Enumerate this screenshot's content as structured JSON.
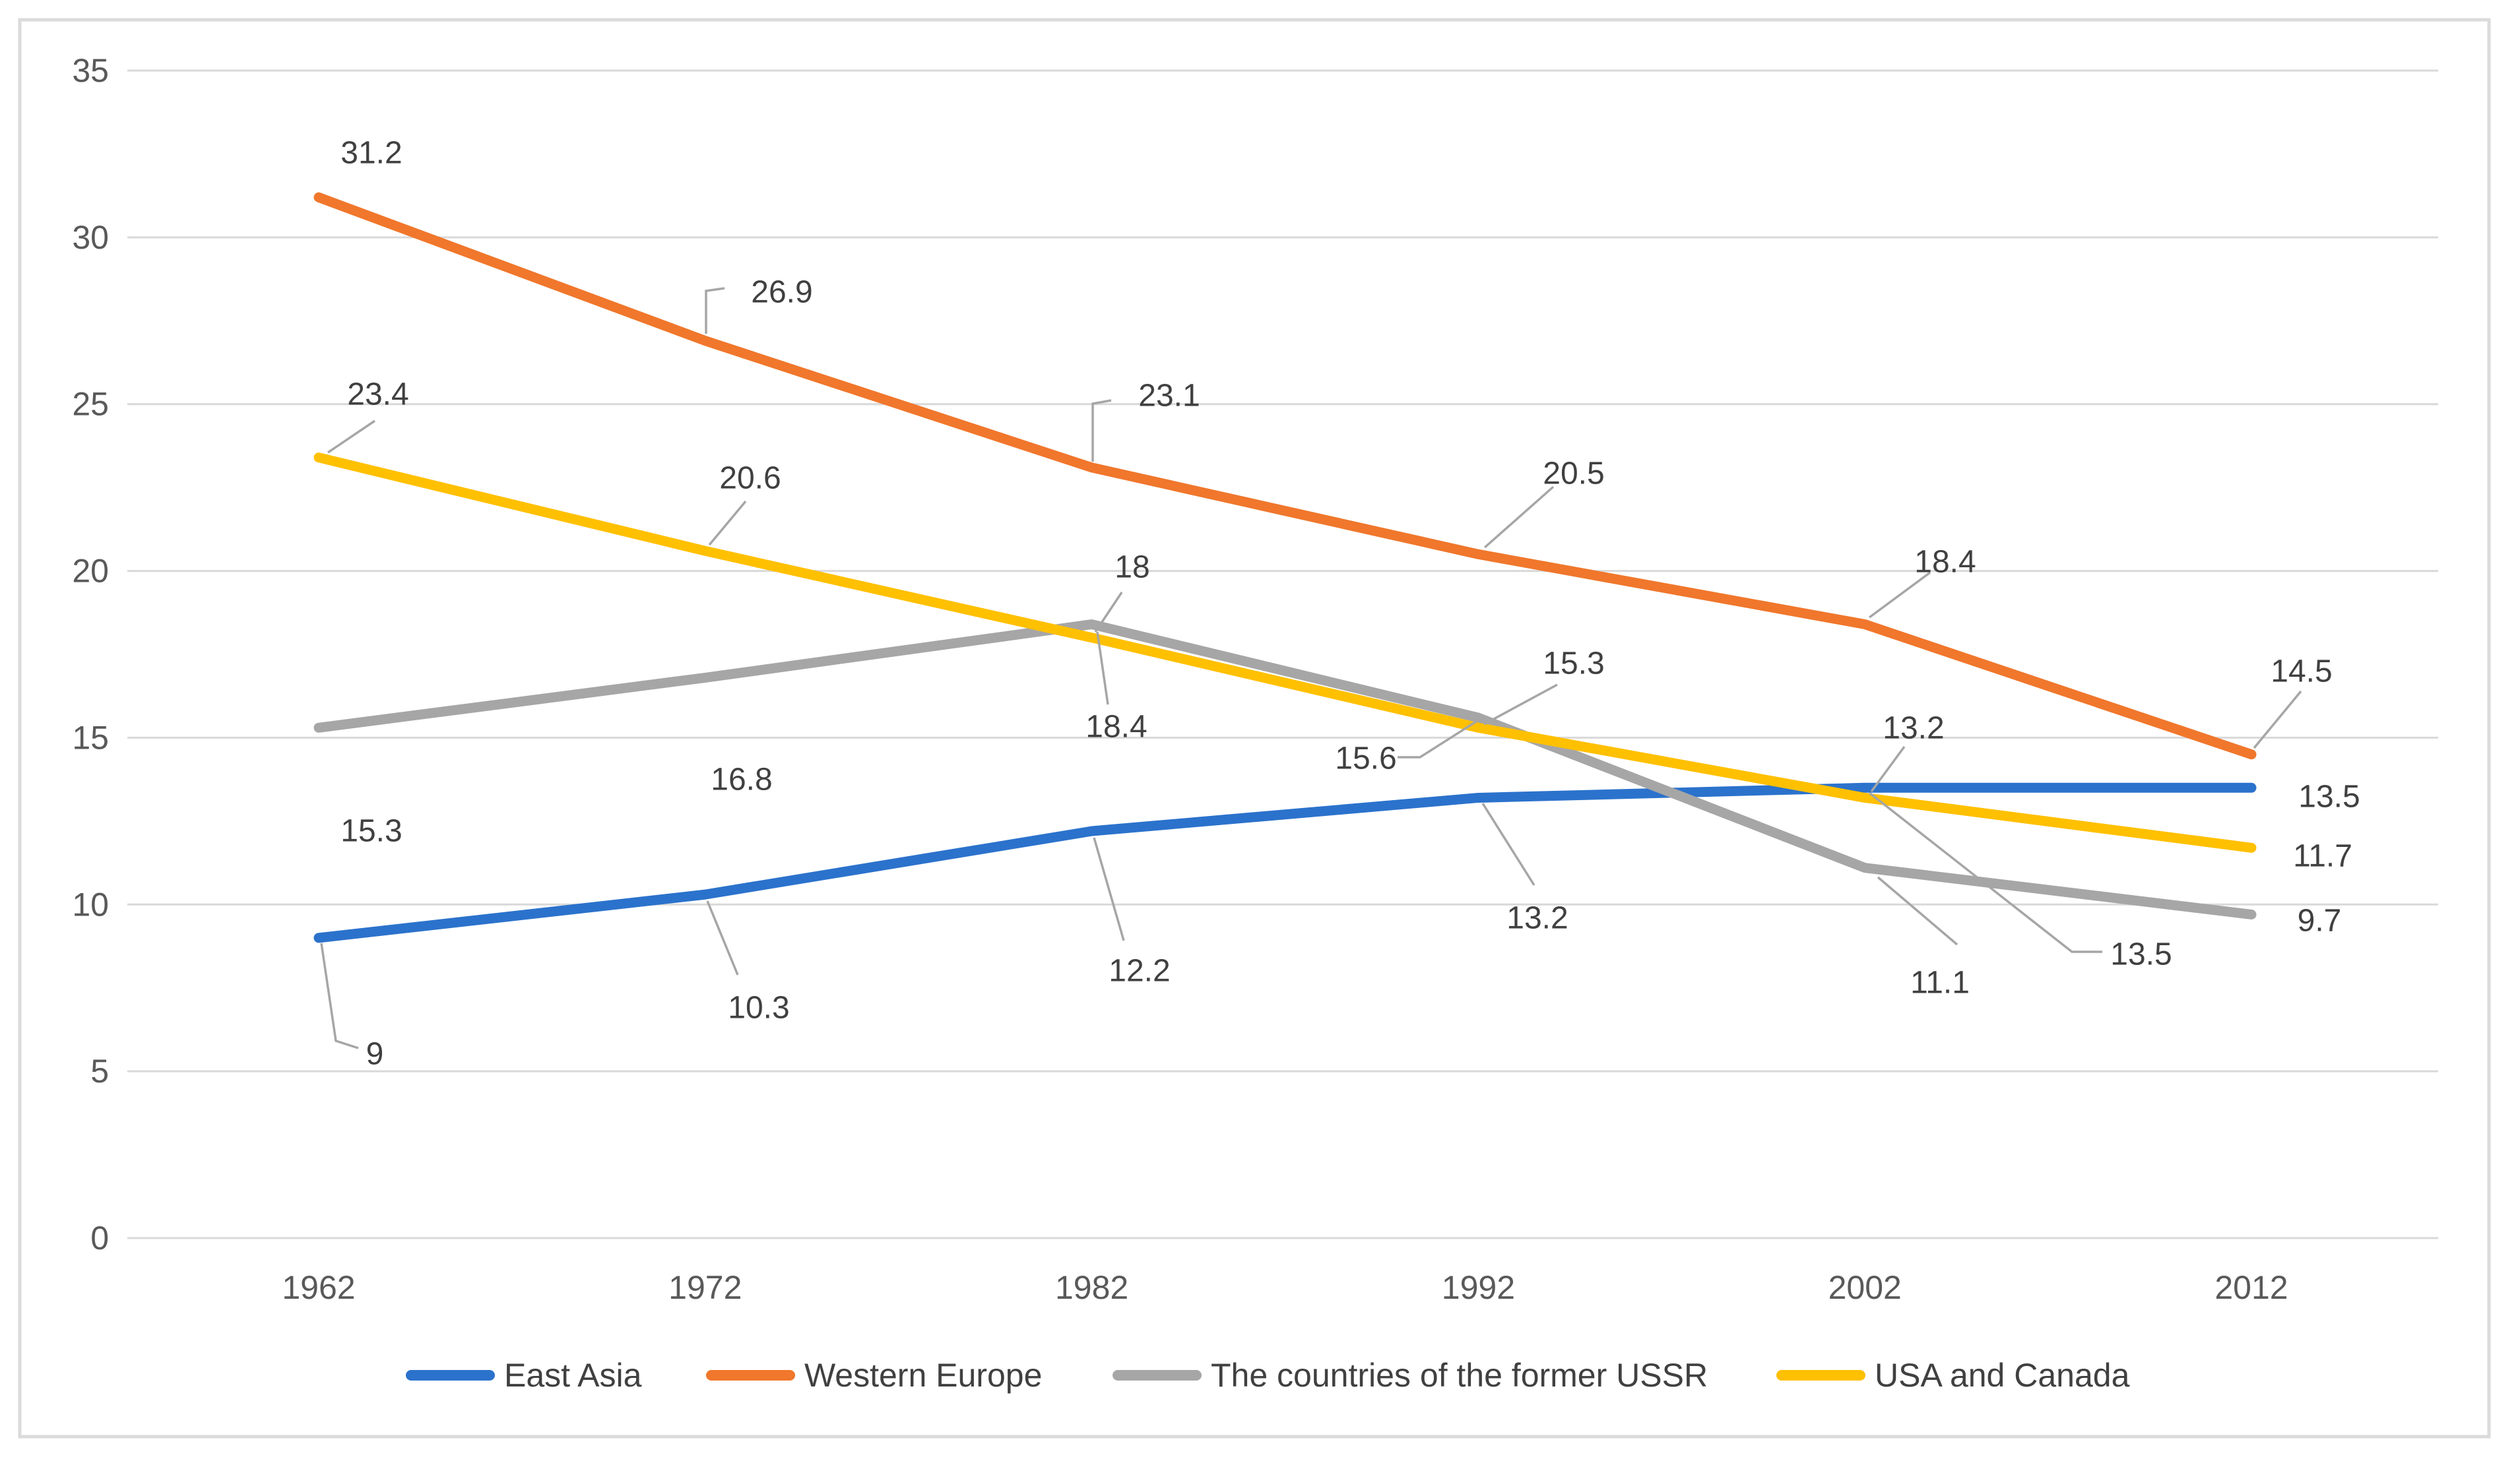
{
  "chart_data": {
    "type": "line",
    "title": "",
    "categories": [
      "1962",
      "1972",
      "1982",
      "1992",
      "2002",
      "2012"
    ],
    "series": [
      {
        "name": "East Asia",
        "color": "#2B72CC",
        "values": [
          9,
          10.3,
          12.2,
          13.2,
          13.5,
          13.5
        ]
      },
      {
        "name": "Western Europe",
        "color": "#F0772C",
        "values": [
          31.2,
          26.9,
          23.1,
          20.5,
          18.4,
          14.5
        ]
      },
      {
        "name": "The countries of the former USSR",
        "color": "#A6A6A6",
        "values": [
          15.3,
          16.8,
          18.4,
          15.6,
          11.1,
          9.7
        ]
      },
      {
        "name": "USA and Canada",
        "color": "#FFC000",
        "values": [
          23.4,
          20.6,
          18,
          15.3,
          13.2,
          11.7
        ]
      }
    ],
    "y_axis": {
      "min": 0,
      "max": 35,
      "step": 5,
      "tick_labels": [
        "0",
        "5",
        "10",
        "15",
        "20",
        "25",
        "30",
        "35"
      ]
    },
    "x_axis": {
      "tick_labels": [
        "1962",
        "1972",
        "1982",
        "1992",
        "2002",
        "2012"
      ]
    },
    "grid": true,
    "legend_position": "bottom",
    "data_labels_shown": true,
    "colors": {
      "gridline": "#D9D9D9",
      "axis_text": "#595959",
      "label_text": "#404040",
      "leader_line": "#A6A6A6",
      "figure_border": "#DBDBDB",
      "background": "#FFFFFF"
    }
  }
}
